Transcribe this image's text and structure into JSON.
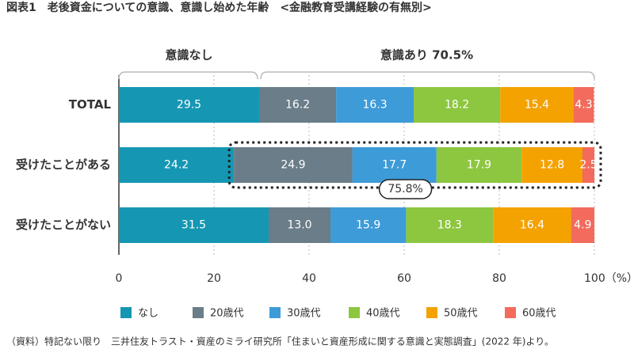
{
  "chart_data": {
    "type": "stacked-bar-horizontal",
    "title": "図表1　老後資金についての意識、意識し始めた年齢　<金融教育受講経験の有無別>",
    "categories": [
      "TOTAL",
      "受けたことがある",
      "受けたことがない"
    ],
    "series": [
      {
        "name": "なし",
        "color": "#1597b3",
        "values": [
          29.5,
          24.2,
          31.5
        ]
      },
      {
        "name": "20歳代",
        "color": "#6a7d89",
        "values": [
          16.2,
          24.9,
          13.0
        ],
        "value_labels": [
          "16.2",
          "24.9",
          "13.0"
        ]
      },
      {
        "name": "30歳代",
        "color": "#3d9bd8",
        "values": [
          16.3,
          17.7,
          15.9
        ]
      },
      {
        "name": "40歳代",
        "color": "#8dc63f",
        "values": [
          18.2,
          17.9,
          18.3
        ]
      },
      {
        "name": "50歳代",
        "color": "#f3a200",
        "values": [
          15.4,
          12.8,
          16.4
        ]
      },
      {
        "name": "60歳代",
        "color": "#f26b5c",
        "values": [
          4.3,
          2.5,
          4.9
        ]
      }
    ],
    "xlim": [
      0,
      100
    ],
    "xticks": [
      0,
      20,
      40,
      60,
      80,
      {
        "value": 100,
        "label": "100（%）"
      }
    ],
    "grid": true,
    "annotations": [
      "意識なし",
      "意識あり 70.5%",
      "75.8%"
    ],
    "note": "（資料）特記ない限り　三井住友トラスト・資産のミライ研究所「住まいと資産形成に関する意識と実態調査」(2022 年)より。"
  }
}
